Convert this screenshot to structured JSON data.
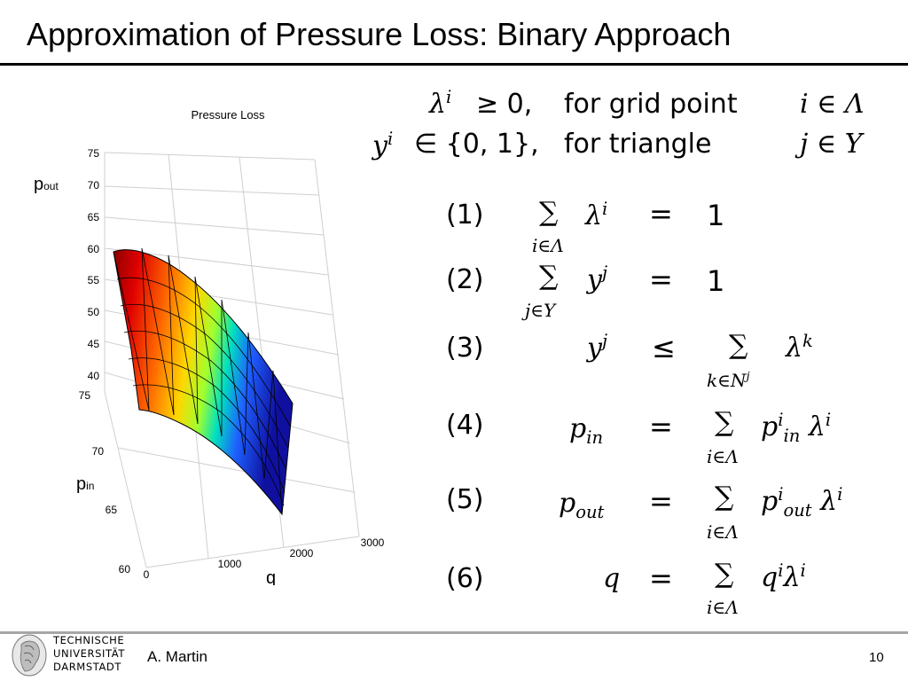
{
  "slide": {
    "title": "Approximation of Pressure Loss: Binary Approach",
    "author": "A. Martin",
    "page_number": "10"
  },
  "logo": {
    "line1": "TECHNISCHE",
    "line2": "UNIVERSITÄT",
    "line3": "DARMSTADT"
  },
  "constraints": {
    "line1": {
      "lhs": "λ",
      "lhs_sup": "i",
      "rel": "≥ 0,",
      "text": "for grid point",
      "set": "i ∈ Λ"
    },
    "line2": {
      "lhs": "y",
      "lhs_sup": "i",
      "rel": "∈ {0, 1},",
      "text": "for triangle",
      "set": "j ∈ Y"
    }
  },
  "equations": [
    {
      "num": "(1)",
      "lhs": "",
      "rel": "",
      "sum_index": "i∈Λ",
      "body": "λ",
      "body_sup": "i",
      "eq": "=",
      "rhs": "1"
    },
    {
      "num": "(2)",
      "lhs": "",
      "rel": "",
      "sum_index": "j∈Y",
      "body": "y",
      "body_sup": "j",
      "eq": "=",
      "rhs": "1"
    },
    {
      "num": "(3)",
      "lhs": "y",
      "lhs_sup": "j",
      "rel": "≤",
      "sum_index": "k∈N",
      "sum_index_sup": "j",
      "body": "λ",
      "body_sup": "k"
    },
    {
      "num": "(4)",
      "lhs": "p",
      "lhs_sub": "in",
      "rel": "=",
      "sum_index": "i∈Λ",
      "body": "p",
      "body_sup": "i",
      "body_sub": "in",
      "body2": "λ",
      "body2_sup": "i"
    },
    {
      "num": "(5)",
      "lhs": "p",
      "lhs_sub": "out",
      "rel": "=",
      "sum_index": "i∈Λ",
      "body": "p",
      "body_sup": "i",
      "body_sub": "out",
      "body2": "λ",
      "body2_sup": "i"
    },
    {
      "num": "(6)",
      "lhs": "q",
      "rel": "=",
      "sum_index": "i∈Λ",
      "body": "q",
      "body_sup": "i",
      "body2": "λ",
      "body2_sup": "i"
    }
  ],
  "chart_data": {
    "type": "surface",
    "title": "Pressure Loss",
    "axes": {
      "p_out": {
        "label_main": "p",
        "label_sub": "out",
        "ticks": [
          "75",
          "70",
          "65",
          "60",
          "55",
          "50",
          "45",
          "40"
        ],
        "range": [
          40,
          75
        ]
      },
      "p_in": {
        "label_main": "p",
        "label_sub": "in",
        "ticks": [
          "75",
          "70",
          "65",
          "60"
        ],
        "range": [
          60,
          75
        ]
      },
      "q": {
        "label": "q",
        "ticks": [
          "0",
          "1000",
          "2000",
          "3000"
        ],
        "range": [
          0,
          3000
        ]
      }
    },
    "colormap": [
      "#8b0000",
      "#ff0000",
      "#ff8c00",
      "#ffff00",
      "#00ff00",
      "#00ffff",
      "#0000ff",
      "#00008b"
    ],
    "grid": "on"
  }
}
